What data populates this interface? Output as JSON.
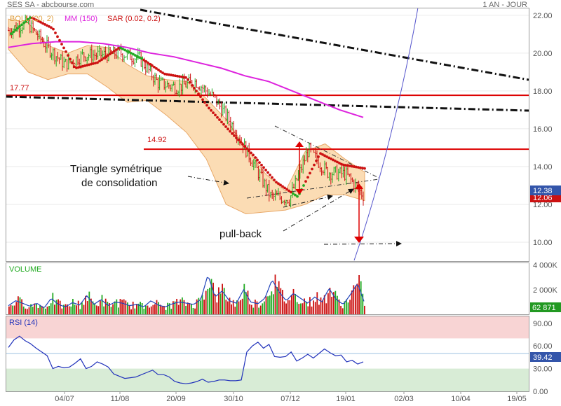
{
  "header": {
    "title": "SES SA - abcbourse.com",
    "period": "1 AN - JOUR"
  },
  "legend": {
    "boll": "BOLL (20, 2)",
    "mm": "MM (150)",
    "sar": "SAR (0.02, 0.2)"
  },
  "colors": {
    "price_up": "#22aa22",
    "price_down": "#cc1111",
    "sar_up": "#22aa22",
    "sar_down": "#cc1111",
    "bollinger_fill": "#fbdcb4",
    "bollinger_line": "#e8a868",
    "mm150": "#dd22dd",
    "support_lines": "#dd0000",
    "trend_dashdot": "#111111",
    "curve": "#5555cc",
    "volume_line": "#2244bb",
    "rsi_line": "#2233bb",
    "rsi_over_zone": "#f8d4d4",
    "rsi_under_zone": "#d8ecd6",
    "label_box_blue": "#3355aa",
    "label_box_red": "#cc1111",
    "label_box_green": "#229922"
  },
  "annotations": {
    "triangle_line1": "Triangle symétrique",
    "triangle_line2": "de consolidation",
    "pullback": "pull-back",
    "level_1777": "17.77",
    "level_1492": "14.92"
  },
  "last_values": {
    "price": "12.38",
    "sar": "12.06",
    "volume": "62 871",
    "rsi": "39.42"
  },
  "chart_data": {
    "type": "candlestick",
    "price_panel": {
      "ylim": [
        9.0,
        22.4
      ],
      "y_ticks": [
        "22.00",
        "20.00",
        "18.00",
        "16.00",
        "14.00",
        "12.00",
        "10.00"
      ],
      "horizontal_levels": [
        17.77,
        14.92
      ],
      "series": [
        {
          "name": "BOLL (20, 2)",
          "kind": "band",
          "upper": [
            21.8,
            21.6,
            20.4,
            20.0,
            20.4,
            20.3,
            19.4,
            18.8,
            18.6,
            18.5,
            17.6,
            16.5,
            15.0,
            13.6,
            12.7,
            14.8,
            15.2,
            14.4,
            13.7
          ],
          "lower": [
            20.2,
            19.0,
            18.6,
            18.9,
            18.9,
            18.2,
            17.4,
            17.5,
            16.7,
            15.8,
            14.4,
            12.0,
            11.5,
            11.6,
            11.7,
            12.0,
            12.5,
            12.5,
            12.2
          ]
        },
        {
          "name": "MM (150)",
          "kind": "line",
          "values": [
            20.3,
            20.5,
            20.6,
            20.6,
            20.5,
            20.3,
            20.0,
            19.8,
            19.5,
            19.2,
            18.8,
            18.5,
            18.0,
            17.5,
            17.0,
            16.6
          ]
        }
      ],
      "closes_sampled": [
        21.2,
        21.6,
        20.4,
        19.4,
        19.9,
        19.9,
        20.0,
        19.7,
        18.4,
        18.2,
        18.5,
        17.6,
        16.1,
        14.3,
        12.4,
        12.3,
        14.9,
        13.7,
        13.6,
        12.4
      ],
      "sar_points_sampled": [
        20.9,
        21.9,
        21.3,
        19.2,
        19.5,
        20.3,
        19.7,
        18.9,
        18.7,
        17.1,
        15.8,
        14.6,
        13.2,
        12.4,
        14.7,
        14.1,
        13.9
      ]
    },
    "volume_panel": {
      "ylim": [
        0,
        4200000
      ],
      "y_ticks": [
        "4 000K",
        "2 000K"
      ],
      "values": [
        700000,
        1100000,
        900000,
        650000,
        900000,
        500000,
        1300000,
        800000,
        600000,
        950000,
        750000,
        1500000,
        800000,
        1200000,
        700000,
        1000000,
        900000,
        700000,
        800000,
        600000,
        1100000,
        750000,
        600000,
        850000,
        1000000,
        900000,
        800000,
        1200000,
        3200000,
        1400000,
        1900000,
        1100000,
        900000,
        2000000,
        1000000,
        850000,
        1300000,
        2800000,
        1800000,
        1100000,
        1700000,
        1300000,
        900000,
        1400000,
        1000000,
        2100000,
        1200000,
        800000,
        1600000,
        2500000,
        900000
      ]
    },
    "rsi_panel": {
      "ylim": [
        0,
        100
      ],
      "y_ticks": [
        "90.00",
        "60.00",
        "30.00",
        "0.00"
      ],
      "overbought": 70,
      "oversold": 30,
      "values": [
        58,
        68,
        73,
        67,
        63,
        57,
        52,
        47,
        30,
        33,
        31,
        32,
        37,
        43,
        30,
        33,
        39,
        36,
        32,
        23,
        20,
        17,
        18,
        19,
        22,
        25,
        28,
        22,
        22,
        19,
        13,
        11,
        10,
        11,
        13,
        16,
        12,
        13,
        15,
        15,
        14,
        14,
        15,
        52,
        60,
        65,
        57,
        62,
        46,
        45,
        46,
        52,
        40,
        44,
        49,
        44,
        50,
        56,
        51,
        47,
        48,
        39,
        41,
        36,
        39
      ]
    },
    "x_ticks": [
      "04/07",
      "11/08",
      "20/09",
      "30/10",
      "07/12",
      "19/01",
      "02/03",
      "10/04",
      "19/05"
    ]
  }
}
